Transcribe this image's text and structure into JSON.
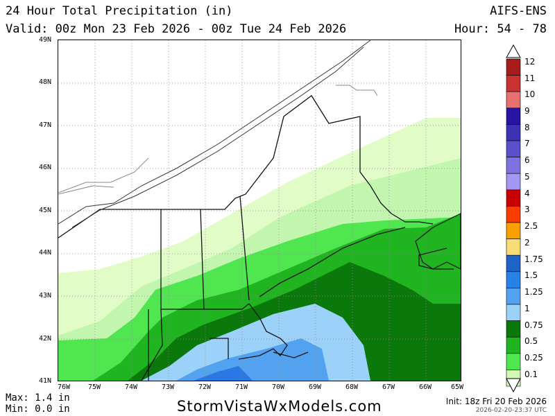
{
  "header": {
    "title": "24 Hour Total Precipitation (in)",
    "valid": "Valid: 00z Mon 23 Feb 2026 - 00z Tue 24 Feb 2026",
    "model": "AIFS-ENS",
    "hour": "Hour: 54 - 78"
  },
  "map": {
    "lat_labels": [
      "49N",
      "48N",
      "47N",
      "46N",
      "45N",
      "44N",
      "43N",
      "42N",
      "41N"
    ],
    "lon_labels": [
      "76W",
      "75W",
      "74W",
      "73W",
      "72W",
      "71W",
      "70W",
      "69W",
      "68W",
      "67W",
      "66W",
      "65W"
    ],
    "lat_range": [
      41,
      49
    ],
    "lon_range": [
      -76,
      -65
    ],
    "colors": {
      "b0_1": "#e2fcc8",
      "b0_25": "#c2f5ae",
      "b0_5": "#50e650",
      "b0_75": "#20b420",
      "b1": "#0a780a",
      "b1_25": "#9cd2fa",
      "b1_5": "#52a2f0",
      "b1_75": "#2a78e4"
    }
  },
  "legend": {
    "labels": [
      "12",
      "11",
      "10",
      "9",
      "8",
      "7",
      "6",
      "5",
      "4",
      "3",
      "2.5",
      "2",
      "1.75",
      "1.5",
      "1.25",
      "1",
      "0.75",
      "0.5",
      "0.25",
      "0.1"
    ],
    "colors": [
      "#a81c1c",
      "#c83232",
      "#e87070",
      "#2814a0",
      "#3c32b4",
      "#5a50cc",
      "#7e72e0",
      "#a498f4",
      "#c80000",
      "#fa3c00",
      "#f8a000",
      "#f8dc78",
      "#1e64c8",
      "#2882e6",
      "#52a2f0",
      "#9cd2fa",
      "#0a780a",
      "#20b420",
      "#50e650",
      "#d2fab4"
    ]
  },
  "footer": {
    "max": "Max: 1.4 in",
    "min": "Min: 0.0 in",
    "brand": "StormVistaWxModels.com",
    "init": "Init: 18z Fri 20 Feb 2026",
    "timestamp": "2026-02-20-23:37 UTC"
  }
}
